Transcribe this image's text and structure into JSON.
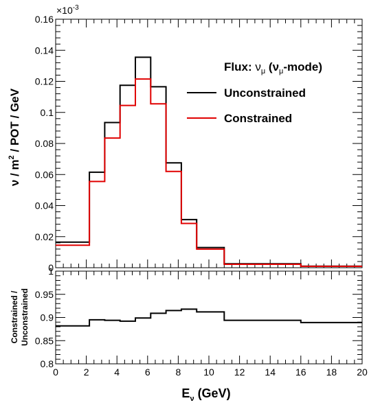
{
  "colors": {
    "unconstrained": "#000000",
    "constrained": "#e00000"
  },
  "chart_data": [
    {
      "type": "line",
      "step": true,
      "scale_label": "×10",
      "scale_exponent": "-3",
      "ylabel_parts": [
        "ν / m",
        "2",
        " / POT / GeV"
      ],
      "xlim": [
        0,
        20
      ],
      "ylim": [
        0,
        0.16
      ],
      "bin_edges": [
        0,
        2.2,
        3.2,
        4.2,
        5.2,
        6.2,
        7.2,
        8.2,
        9.2,
        11,
        16,
        20
      ],
      "yticks": [
        0,
        0.02,
        0.04,
        0.06,
        0.08,
        0.1,
        0.12,
        0.14,
        0.16
      ],
      "ytick_labels": [
        "0",
        "0.02",
        "0.04",
        "0.06",
        "0.08",
        "0.1",
        "0.12",
        "0.14",
        "0.16"
      ],
      "legend": {
        "title_prefix": "Flux: ",
        "title_nu": "ν",
        "title_sub": "μ",
        "title_paren_open": " (ν",
        "title_paren_sub": "μ",
        "title_suffix": "-mode)",
        "placement": "top-right"
      },
      "series": [
        {
          "name": "Unconstrained",
          "color": "#000000",
          "values": [
            0.0165,
            0.0615,
            0.0935,
            0.1175,
            0.1355,
            0.1165,
            0.0675,
            0.031,
            0.013,
            0.0025,
            0.001
          ]
        },
        {
          "name": "Constrained",
          "color": "#e00000",
          "values": [
            0.0145,
            0.0555,
            0.0835,
            0.1045,
            0.1215,
            0.1055,
            0.062,
            0.0285,
            0.012,
            0.0022,
            0.0009
          ]
        }
      ]
    },
    {
      "type": "line",
      "step": true,
      "ylabel_line1": "Constrained /",
      "ylabel_line2": "Unconstrained",
      "xlabel_main": "E",
      "xlabel_sub": "ν",
      "xlabel_unit": " (GeV)",
      "xlim": [
        0,
        20
      ],
      "ylim": [
        0.8,
        1.0
      ],
      "bin_edges": [
        0,
        2.2,
        3.2,
        4.2,
        5.2,
        6.2,
        7.2,
        8.2,
        9.2,
        11,
        16,
        20
      ],
      "yticks": [
        0.8,
        0.85,
        0.9,
        0.95,
        1
      ],
      "ytick_labels": [
        "0.8",
        "0.85",
        "0.9",
        "0.95",
        "1"
      ],
      "xticks": [
        0,
        2,
        4,
        6,
        8,
        10,
        12,
        14,
        16,
        18,
        20
      ],
      "xtick_labels": [
        "0",
        "2",
        "4",
        "6",
        "8",
        "10",
        "12",
        "14",
        "16",
        "18",
        "20"
      ],
      "series": [
        {
          "name": "Constrained / Unconstrained",
          "color": "#000000",
          "values": [
            0.882,
            0.895,
            0.894,
            0.892,
            0.899,
            0.909,
            0.915,
            0.918,
            0.912,
            0.894,
            0.889
          ]
        }
      ]
    }
  ]
}
